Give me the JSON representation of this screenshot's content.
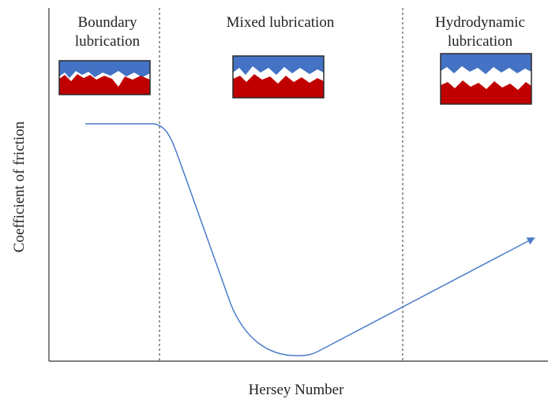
{
  "regions": [
    {
      "lines": [
        "Boundary",
        "lubrication"
      ]
    },
    {
      "lines": [
        "Mixed lubrication"
      ]
    },
    {
      "lines": [
        "Hydrodynamic",
        "lubrication"
      ]
    }
  ],
  "axes": {
    "y_label": "Coefficient of friction",
    "x_label": "Hersey Number"
  }
}
